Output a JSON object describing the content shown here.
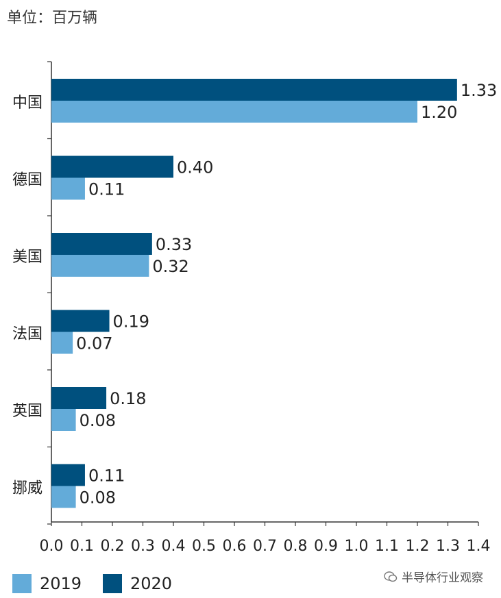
{
  "unit_label": "单位：百万辆",
  "watermark": "半导体行业观察",
  "colors": {
    "s2019": "#63abd9",
    "s2020": "#00507e",
    "axis": "#333333",
    "text": "#222222"
  },
  "chart_data": {
    "type": "bar",
    "orientation": "horizontal",
    "categories": [
      "中国",
      "德国",
      "美国",
      "法国",
      "英国",
      "挪威"
    ],
    "series": [
      {
        "name": "2020",
        "values": [
          1.33,
          0.4,
          0.33,
          0.19,
          0.18,
          0.11
        ],
        "labels": [
          "1.33",
          "0.40",
          "0.33",
          "0.19",
          "0.18",
          "0.11"
        ]
      },
      {
        "name": "2019",
        "values": [
          1.2,
          0.11,
          0.32,
          0.07,
          0.08,
          0.08
        ],
        "labels": [
          "1.20",
          "0.11",
          "0.32",
          "0.07",
          "0.08",
          "0.08"
        ]
      }
    ],
    "xlim": [
      0,
      1.4
    ],
    "xticks": [
      "0.0",
      "0.1",
      "0.2",
      "0.3",
      "0.4",
      "0.5",
      "0.6",
      "0.7",
      "0.8",
      "0.9",
      "1.0",
      "1.1",
      "1.2",
      "1.3",
      "1.4"
    ],
    "grid": false,
    "legend": "bottom-left"
  },
  "legend_items": [
    {
      "label": "2019"
    },
    {
      "label": "2020"
    }
  ]
}
